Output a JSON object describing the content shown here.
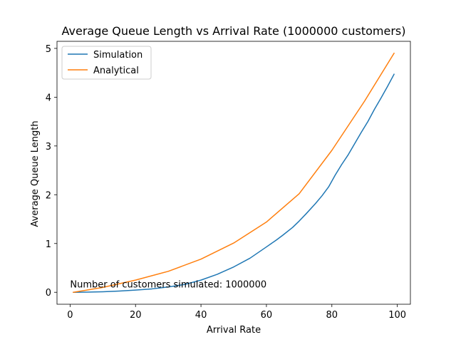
{
  "chart_data": {
    "type": "line",
    "title": "Average Queue Length vs Arrival Rate (1000000 customers)",
    "xlabel": "Arrival Rate",
    "ylabel": "Average Queue Length",
    "xlim": [
      -4,
      104
    ],
    "ylim": [
      -0.245,
      5.145
    ],
    "xticks": [
      0,
      20,
      40,
      60,
      80,
      100
    ],
    "yticks": [
      0,
      1,
      2,
      3,
      4,
      5
    ],
    "grid": false,
    "legend": "top-left",
    "annotation": {
      "text": "Number of customers simulated: 1000000",
      "x": 0,
      "y": 0.1
    },
    "series": [
      {
        "name": "Simulation",
        "color": "#1f77b4",
        "x": [
          1,
          5,
          10,
          15,
          20,
          25,
          30,
          35,
          40,
          45,
          50,
          55,
          60,
          63,
          65,
          68,
          70,
          72,
          75,
          77,
          79,
          81,
          83,
          85,
          87,
          89,
          91,
          93,
          95,
          97,
          99
        ],
        "y": [
          0.0,
          0.003,
          0.011,
          0.025,
          0.045,
          0.07,
          0.11,
          0.16,
          0.25,
          0.37,
          0.52,
          0.7,
          0.93,
          1.07,
          1.17,
          1.33,
          1.46,
          1.6,
          1.82,
          1.98,
          2.16,
          2.4,
          2.62,
          2.82,
          3.05,
          3.28,
          3.5,
          3.75,
          3.98,
          4.22,
          4.47
        ]
      },
      {
        "name": "Analytical",
        "color": "#ff7f0e",
        "x": [
          1,
          10,
          20,
          30,
          40,
          50,
          60,
          70,
          80,
          90,
          99
        ],
        "y": [
          0.0,
          0.1,
          0.25,
          0.43,
          0.68,
          1.01,
          1.44,
          2.02,
          2.91,
          3.92,
          4.9
        ]
      }
    ]
  }
}
